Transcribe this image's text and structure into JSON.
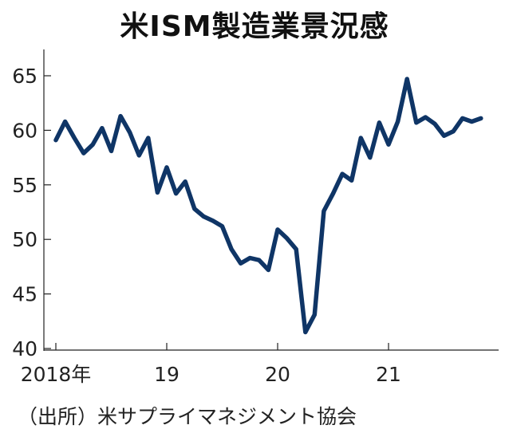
{
  "chart_data": {
    "type": "line",
    "title": "米ISM製造業景況感",
    "xlabel": "",
    "ylabel": "",
    "ylim": [
      40,
      66
    ],
    "y_ticks": [
      40,
      45,
      50,
      55,
      60,
      65
    ],
    "x_ticks": [
      {
        "label": "2018年",
        "value": 2018.0
      },
      {
        "label": "19",
        "value": 2019.0
      },
      {
        "label": "20",
        "value": 2020.0
      },
      {
        "label": "21",
        "value": 2021.0
      }
    ],
    "grid": false,
    "series": [
      {
        "color": "#0f3566",
        "points": [
          [
            "2018-01",
            59.1
          ],
          [
            "2018-02",
            60.8
          ],
          [
            "2018-03",
            59.3
          ],
          [
            "2018-04",
            57.9
          ],
          [
            "2018-05",
            58.7
          ],
          [
            "2018-06",
            60.2
          ],
          [
            "2018-07",
            58.1
          ],
          [
            "2018-08",
            61.3
          ],
          [
            "2018-09",
            59.8
          ],
          [
            "2018-10",
            57.7
          ],
          [
            "2018-11",
            59.3
          ],
          [
            "2018-12",
            54.3
          ],
          [
            "2019-01",
            56.6
          ],
          [
            "2019-02",
            54.2
          ],
          [
            "2019-03",
            55.3
          ],
          [
            "2019-04",
            52.8
          ],
          [
            "2019-05",
            52.1
          ],
          [
            "2019-06",
            51.7
          ],
          [
            "2019-07",
            51.2
          ],
          [
            "2019-08",
            49.1
          ],
          [
            "2019-09",
            47.8
          ],
          [
            "2019-10",
            48.3
          ],
          [
            "2019-11",
            48.1
          ],
          [
            "2019-12",
            47.2
          ],
          [
            "2020-01",
            50.9
          ],
          [
            "2020-02",
            50.1
          ],
          [
            "2020-03",
            49.1
          ],
          [
            "2020-04",
            41.5
          ],
          [
            "2020-05",
            43.1
          ],
          [
            "2020-06",
            52.6
          ],
          [
            "2020-07",
            54.2
          ],
          [
            "2020-08",
            56.0
          ],
          [
            "2020-09",
            55.4
          ],
          [
            "2020-10",
            59.3
          ],
          [
            "2020-11",
            57.5
          ],
          [
            "2020-12",
            60.7
          ],
          [
            "2021-01",
            58.7
          ],
          [
            "2021-02",
            60.8
          ],
          [
            "2021-03",
            64.7
          ],
          [
            "2021-04",
            60.7
          ],
          [
            "2021-05",
            61.2
          ],
          [
            "2021-06",
            60.6
          ],
          [
            "2021-07",
            59.5
          ],
          [
            "2021-08",
            59.9
          ],
          [
            "2021-09",
            61.1
          ],
          [
            "2021-10",
            60.8
          ],
          [
            "2021-11",
            61.1
          ]
        ]
      }
    ]
  },
  "source_note": "（出所）米サプライマネジメント協会",
  "line_color": "#0f3566"
}
